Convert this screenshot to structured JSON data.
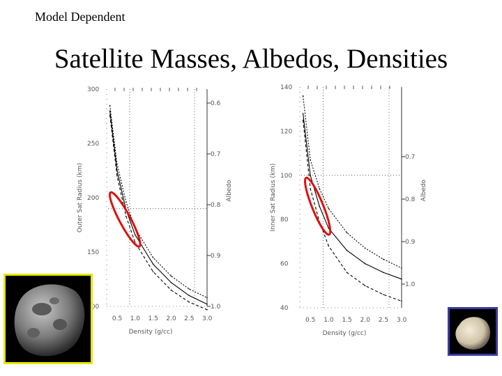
{
  "slide": {
    "corner_label": "Model Dependent",
    "title": "Satellite Masses, Albedos, Densities"
  },
  "images": {
    "left_photo": "hyperion-moon",
    "right_photo": "small-satellite",
    "left_frame_color": "#e6e600",
    "right_frame_color": "#3a3aa0"
  },
  "colors": {
    "highlight_ellipse": "#dd1111",
    "curve": "#000000"
  },
  "chart_data": [
    {
      "type": "line",
      "xlabel": "Density (g/cc)",
      "ylabel": "Outer Sat Radius (km)",
      "y2label": "Albedo",
      "xlim": [
        0.25,
        3.0
      ],
      "ylim": [
        100,
        300
      ],
      "x_ticks": [
        "0.5",
        "1.0",
        "1.5",
        "2.0",
        "2.5",
        "3.0"
      ],
      "y_ticks": [
        "100",
        "150",
        "200",
        "250",
        "300"
      ],
      "y2_ticks": [
        "0.6",
        "0.7",
        "0.8",
        "0.9",
        "1.0"
      ],
      "reference_lines": {
        "x": 0.85,
        "y": 190
      },
      "series": [
        {
          "x": [
            0.3,
            0.5,
            0.75,
            1.0,
            1.5,
            2.0,
            2.5,
            3.0
          ],
          "values": [
            280,
            225,
            189,
            166,
            139,
            122,
            110,
            102
          ]
        },
        {
          "x": [
            0.3,
            0.5,
            0.75,
            1.0,
            1.5,
            2.0,
            2.5,
            3.0
          ],
          "values": [
            276,
            220,
            183,
            159,
            132,
            115,
            104,
            97
          ]
        },
        {
          "x": [
            0.3,
            0.5,
            0.75,
            1.0,
            1.5,
            2.0,
            2.5,
            3.0
          ],
          "values": [
            285,
            231,
            196,
            172,
            145,
            128,
            116,
            108
          ]
        }
      ],
      "highlight": {
        "x_center": 0.72,
        "y_center": 180
      }
    },
    {
      "type": "line",
      "xlabel": "Density (g/cc)",
      "ylabel": "Inner Sat Radius (km)",
      "y2label": "Albedo",
      "xlim": [
        0.25,
        3.0
      ],
      "ylim": [
        40,
        140
      ],
      "x_ticks": [
        "0.5",
        "1.0",
        "1.5",
        "2.0",
        "2.5",
        "3.0"
      ],
      "y_ticks": [
        "40",
        "60",
        "80",
        "100",
        "120",
        "140"
      ],
      "y2_ticks": [
        "0.7",
        "0.8",
        "0.9",
        "1.0"
      ],
      "reference_lines": {
        "x": 0.85,
        "y": 100
      },
      "series": [
        {
          "x": [
            0.3,
            0.5,
            0.75,
            1.0,
            1.5,
            2.0,
            2.5,
            3.0
          ],
          "values": [
            128,
            100,
            86,
            76,
            66,
            60,
            56,
            53
          ]
        },
        {
          "x": [
            0.3,
            0.5,
            0.75,
            1.0,
            1.5,
            2.0,
            2.5,
            3.0
          ],
          "values": [
            125,
            94,
            79,
            68,
            56,
            50,
            46,
            43
          ]
        },
        {
          "x": [
            0.3,
            0.5,
            0.75,
            1.0,
            1.5,
            2.0,
            2.5,
            3.0
          ],
          "values": [
            136,
            107,
            94,
            85,
            74,
            67,
            62,
            58
          ]
        }
      ],
      "highlight": {
        "x_center": 0.7,
        "y_center": 86
      }
    }
  ]
}
